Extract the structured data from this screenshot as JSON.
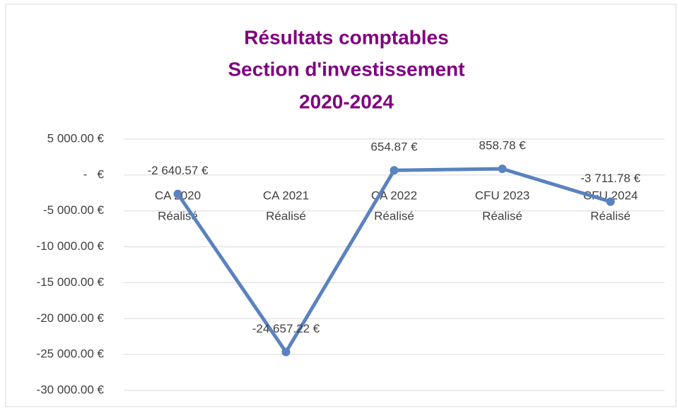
{
  "chart_data": {
    "type": "line",
    "title": [
      "Résultats comptables",
      "Section d'investissement",
      "2020-2024"
    ],
    "categories": [
      [
        "CA 2020",
        "Réalisé"
      ],
      [
        "CA 2021",
        "Réalisé"
      ],
      [
        "CA 2022",
        "Réalisé"
      ],
      [
        "CFU 2023",
        "Réalisé"
      ],
      [
        "CFU 2024",
        "Réalisé"
      ]
    ],
    "values": [
      -2640.57,
      -24657.22,
      654.87,
      858.78,
      -3711.78
    ],
    "value_labels": [
      "-2 640.57 €",
      "-24 657.22 €",
      "654.87 €",
      "858.78 €",
      "-3 711.78 €"
    ],
    "color": "#5a82be",
    "ylim": [
      -30000,
      5000
    ],
    "yticks": [
      {
        "value": 5000,
        "label": "5 000.00 €"
      },
      {
        "value": 0,
        "label": "-   €"
      },
      {
        "value": -5000,
        "label": "-5 000.00 €"
      },
      {
        "value": -10000,
        "label": "-10 000.00 €"
      },
      {
        "value": -15000,
        "label": "-15 000.00 €"
      },
      {
        "value": -20000,
        "label": "-20 000.00 €"
      },
      {
        "value": -25000,
        "label": "-25 000.00 €"
      },
      {
        "value": -30000,
        "label": "-30 000.00 €"
      }
    ],
    "grid": true
  }
}
